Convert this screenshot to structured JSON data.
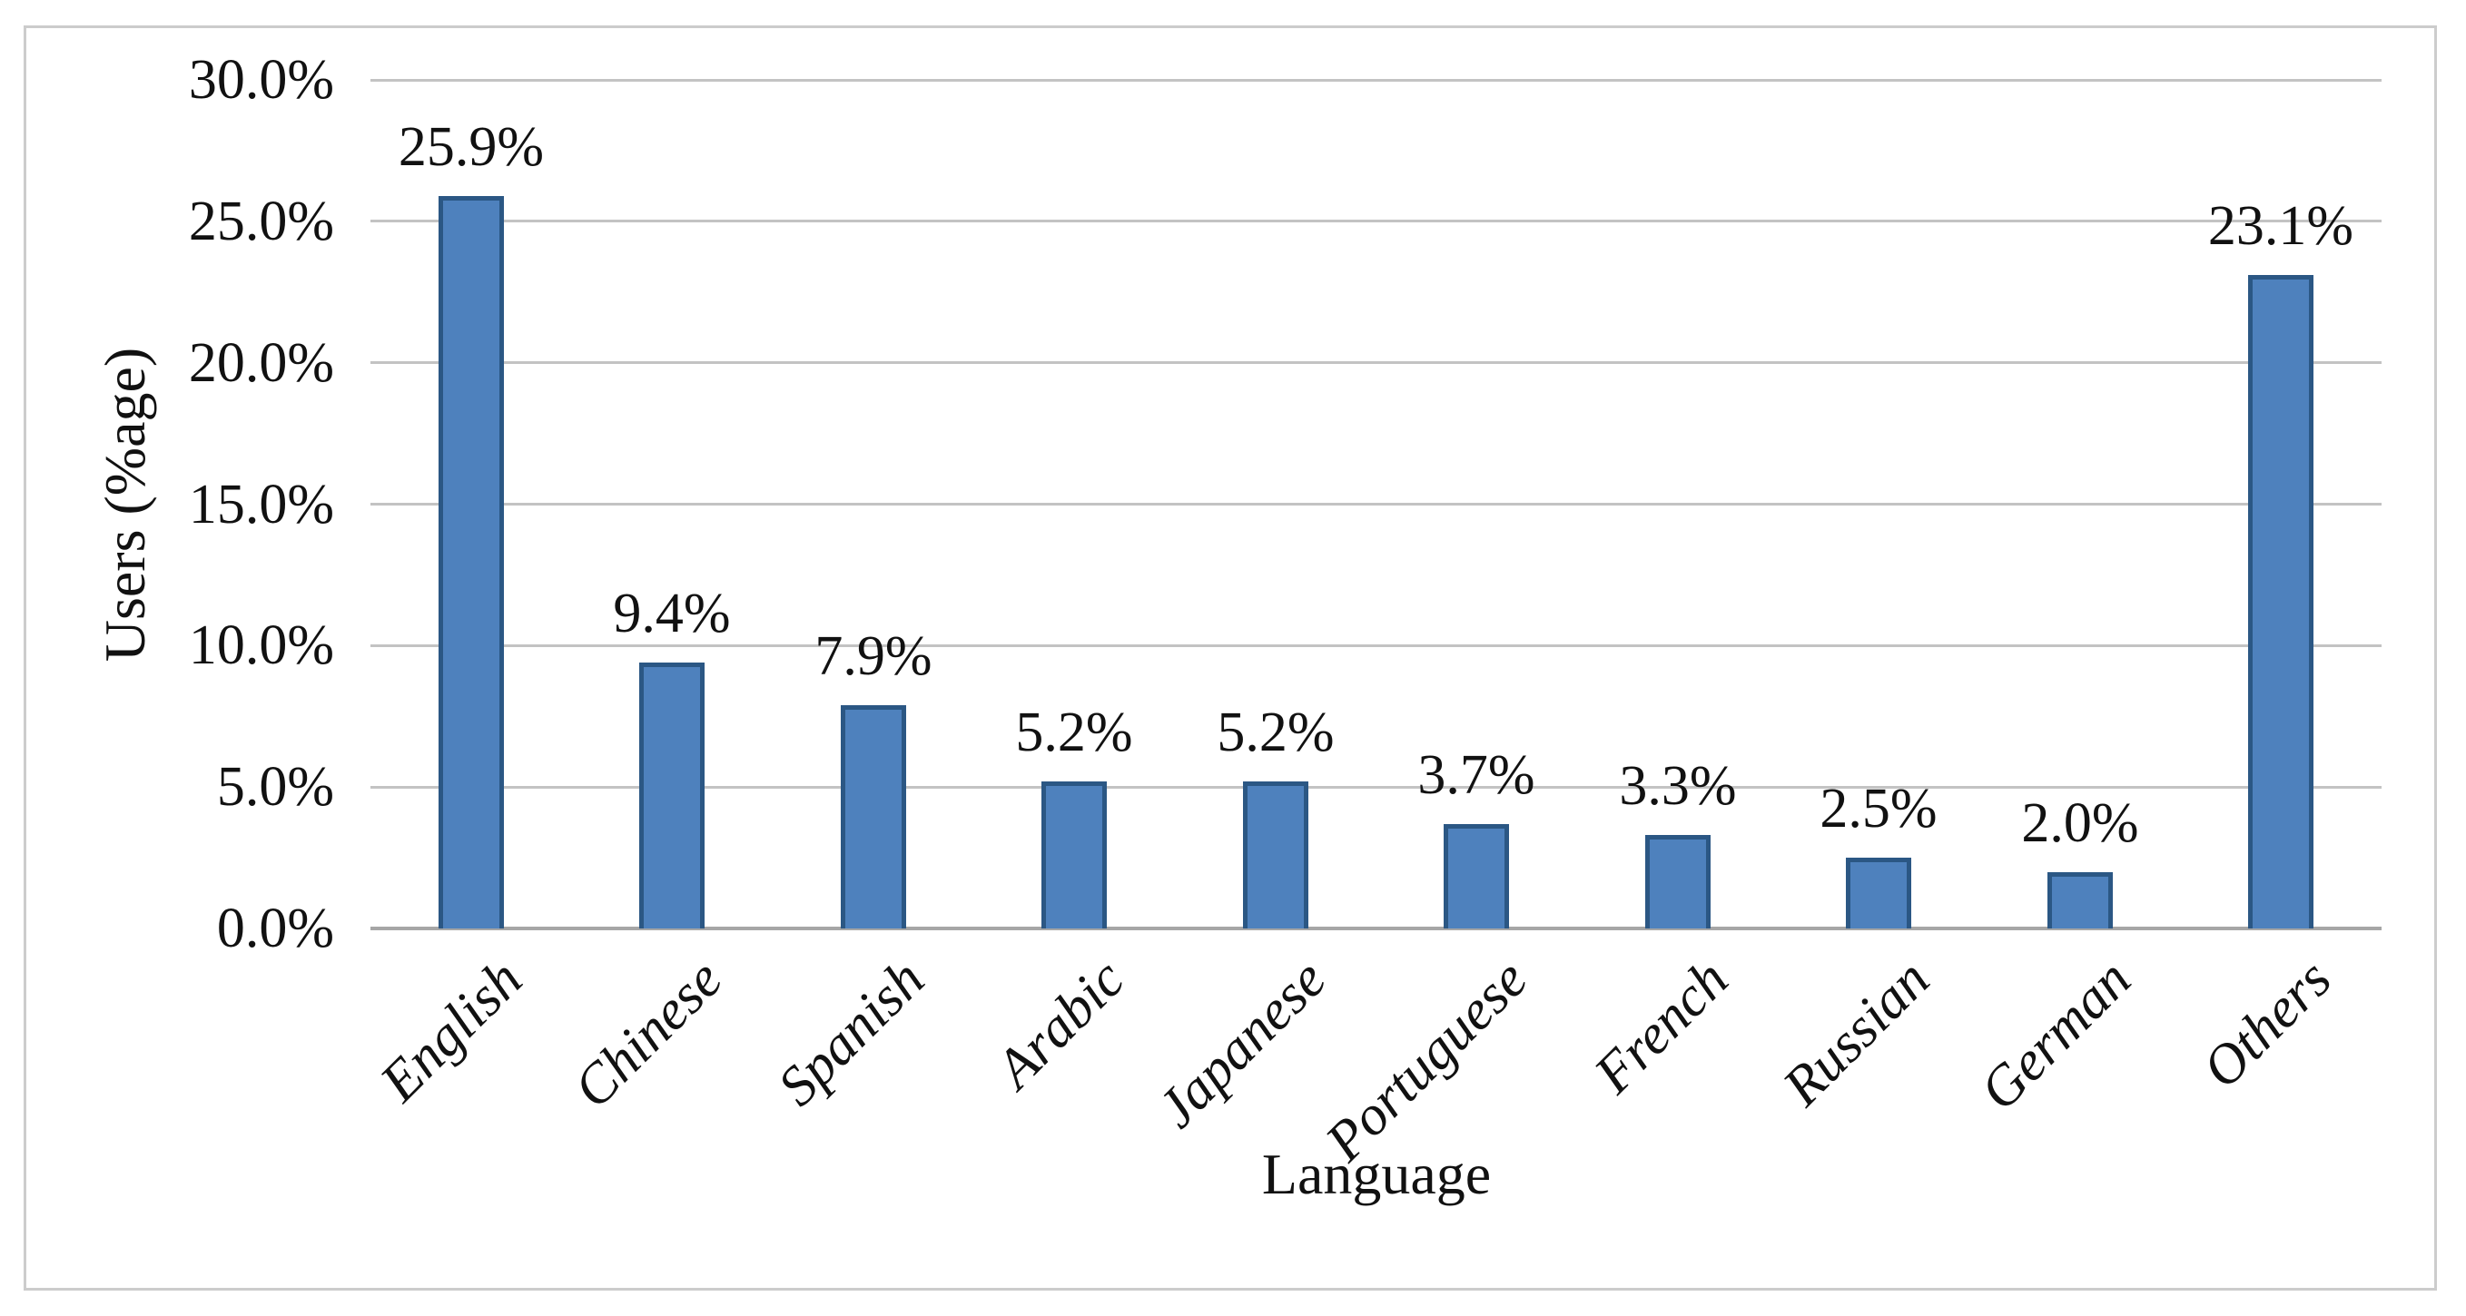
{
  "chart_data": {
    "type": "bar",
    "title": "",
    "xlabel": "Language",
    "ylabel": "Users (%age)",
    "categories": [
      "English",
      "Chinese",
      "Spanish",
      "Arabic",
      "Japanese",
      "Portuguese",
      "French",
      "Russian",
      "German",
      "Others"
    ],
    "values": [
      25.9,
      9.4,
      7.9,
      5.2,
      5.2,
      3.7,
      3.3,
      2.5,
      2.0,
      23.1
    ],
    "data_labels": [
      "25.9%",
      "9.4%",
      "7.9%",
      "5.2%",
      "5.2%",
      "3.7%",
      "3.3%",
      "2.5%",
      "2.0%",
      "23.1%"
    ],
    "y_ticks": [
      {
        "v": 30,
        "label": "30.0%"
      },
      {
        "v": 25,
        "label": "25.0%"
      },
      {
        "v": 20,
        "label": "20.0%"
      },
      {
        "v": 15,
        "label": "15.0%"
      },
      {
        "v": 10,
        "label": "10.0%"
      },
      {
        "v": 5,
        "label": "5.0%"
      },
      {
        "v": 0,
        "label": "0.0%"
      }
    ],
    "ylim": [
      0,
      30
    ],
    "grid": true,
    "legend": false,
    "bar_color": "#4E81BD",
    "bar_border_color": "#2B5784",
    "gridline_color": "#C3C3C3",
    "axis_line_color": "#A6A6A6",
    "frame_border_color": "#CCCCCC",
    "text_color": "#111111",
    "background": "#FFFFFF"
  }
}
